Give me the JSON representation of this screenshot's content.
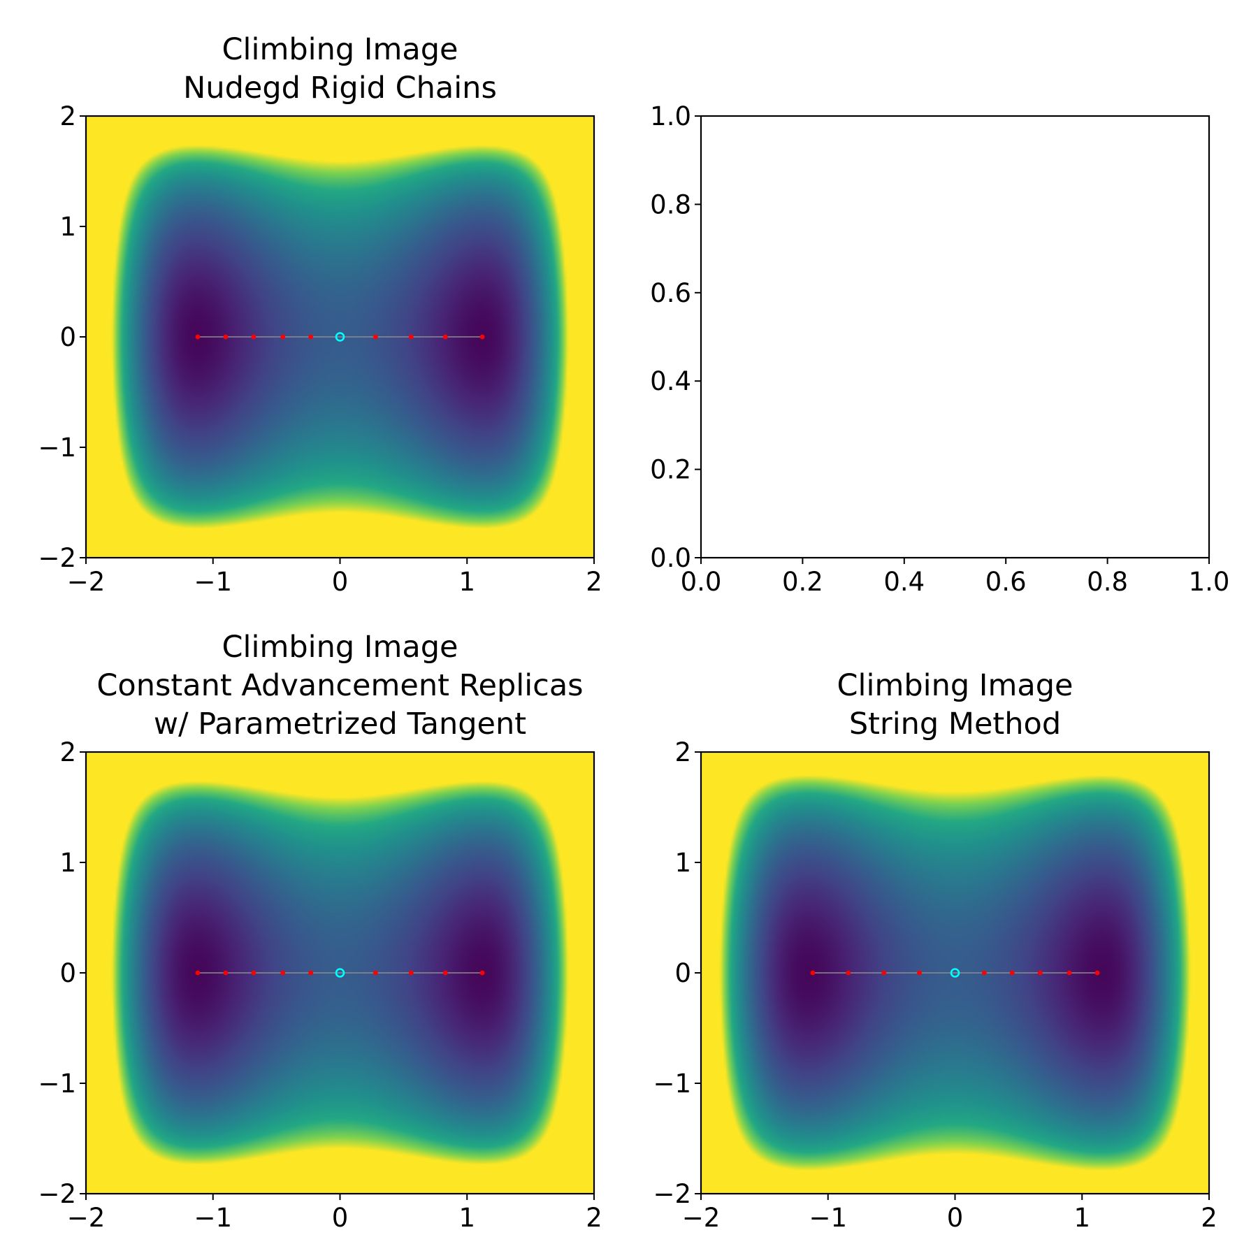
{
  "chart_data": [
    {
      "type": "heatmap",
      "title": [
        "Climbing Image",
        "Nudegd Rigid Chains"
      ],
      "xlim": [
        -2,
        2
      ],
      "ylim": [
        -2,
        2
      ],
      "xticks": [
        "−2",
        "−1",
        "0",
        "1",
        "2"
      ],
      "yticks": [
        "−2",
        "−1",
        "0",
        "1",
        "2"
      ],
      "colormap": "viridis",
      "path": {
        "x": [
          -1.12,
          -0.9,
          -0.68,
          -0.45,
          -0.23,
          0,
          0.28,
          0.56,
          0.83,
          1.12
        ],
        "y": [
          0,
          0,
          0,
          0,
          0,
          0,
          0,
          0,
          0,
          0
        ],
        "climbing_index": 5
      }
    },
    {
      "type": "scatter",
      "title": [],
      "xlim": [
        0,
        1
      ],
      "ylim": [
        0,
        1
      ],
      "xticks": [
        "0.0",
        "0.2",
        "0.4",
        "0.6",
        "0.8",
        "1.0"
      ],
      "yticks": [
        "0.0",
        "0.2",
        "0.4",
        "0.6",
        "0.8",
        "1.0"
      ]
    },
    {
      "type": "heatmap",
      "title": [
        "Climbing Image",
        "Constant Advancement Replicas",
        "w/ Parametrized Tangent"
      ],
      "xlim": [
        -2,
        2
      ],
      "ylim": [
        -2,
        2
      ],
      "xticks": [
        "−2",
        "−1",
        "0",
        "1",
        "2"
      ],
      "yticks": [
        "−2",
        "−1",
        "0",
        "1",
        "2"
      ],
      "colormap": "viridis",
      "path": {
        "x": [
          -1.12,
          -0.9,
          -0.68,
          -0.45,
          -0.23,
          0,
          0.28,
          0.56,
          0.83,
          1.12
        ],
        "y": [
          0,
          0,
          0,
          0,
          0,
          0,
          0,
          0,
          0,
          0
        ],
        "climbing_index": 5
      }
    },
    {
      "type": "heatmap",
      "title": [
        "Climbing Image",
        "String Method"
      ],
      "xlim": [
        -2,
        2
      ],
      "ylim": [
        -2,
        2
      ],
      "xticks": [
        "−2",
        "−1",
        "0",
        "1",
        "2"
      ],
      "yticks": [
        "−2",
        "−1",
        "0",
        "1",
        "2"
      ],
      "colormap": "viridis",
      "path": {
        "x": [
          -1.12,
          -0.84,
          -0.56,
          -0.28,
          0,
          0.23,
          0.45,
          0.67,
          0.9,
          1.12
        ],
        "y": [
          0,
          0,
          0,
          0,
          0,
          0,
          0,
          0,
          0,
          0
        ],
        "climbing_index": 4
      }
    }
  ],
  "colors": {
    "path_line": "#8c8c8c",
    "image_point": "#ff0000",
    "climbing_point": "#00ffff"
  }
}
